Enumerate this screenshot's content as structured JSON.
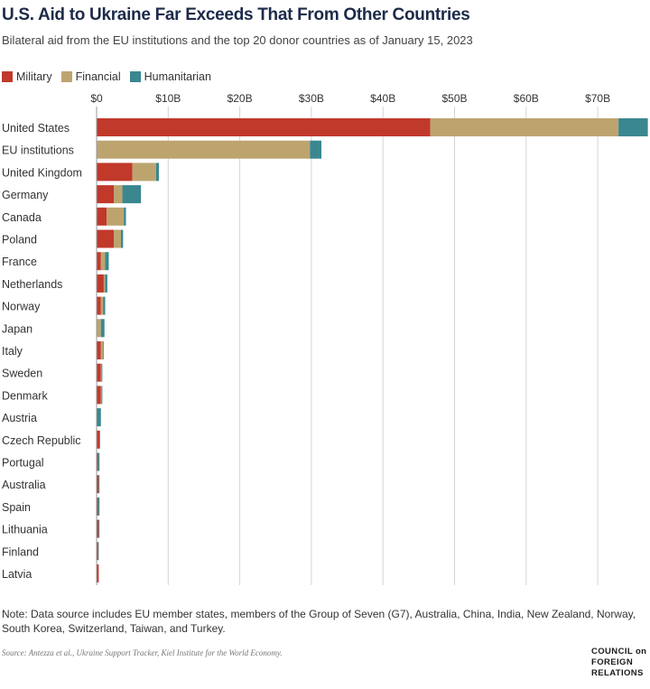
{
  "header": {
    "title": "U.S. Aid to Ukraine Far Exceeds That From Other Countries",
    "subtitle": "Bilateral aid from the EU institutions and the top 20 donor countries as of January 15, 2023"
  },
  "legend": {
    "military": "Military",
    "financial": "Financial",
    "humanitarian": "Humanitarian"
  },
  "colors": {
    "military": "#c0392b",
    "financial": "#bda46f",
    "humanitarian": "#3a8790",
    "grid": "#d4d4d4"
  },
  "chart_data": {
    "type": "bar",
    "orientation": "horizontal",
    "stacked": true,
    "title": "U.S. Aid to Ukraine Far Exceeds That From Other Countries",
    "subtitle": "Bilateral aid from the EU institutions and the top 20 donor countries as of January 15, 2023",
    "x_ticks": [
      "$0",
      "$10B",
      "$20B",
      "$30B",
      "$40B",
      "$50B",
      "$60B",
      "$70B"
    ],
    "xlim": [
      0,
      77
    ],
    "grid": true,
    "legend_position": "top-left",
    "categories": [
      "United States",
      "EU institutions",
      "United Kingdom",
      "Germany",
      "Canada",
      "Poland",
      "France",
      "Netherlands",
      "Norway",
      "Japan",
      "Italy",
      "Sweden",
      "Denmark",
      "Austria",
      "Czech Republic",
      "Portugal",
      "Australia",
      "Spain",
      "Lithuania",
      "Finland",
      "Latvia"
    ],
    "series": [
      {
        "name": "Military",
        "values": [
          46.6,
          0,
          5.0,
          2.4,
          1.4,
          2.4,
          0.6,
          1.0,
          0.6,
          0,
          0.6,
          0.6,
          0.6,
          0,
          0.4,
          0.2,
          0.3,
          0.2,
          0.3,
          0.2,
          0.3
        ]
      },
      {
        "name": "Financial",
        "values": [
          26.3,
          29.8,
          3.3,
          1.2,
          2.4,
          1.0,
          0.6,
          0.2,
          0.3,
          0.6,
          0.3,
          0.1,
          0.1,
          0,
          0,
          0,
          0,
          0,
          0,
          0,
          0
        ]
      },
      {
        "name": "Humanitarian",
        "values": [
          4.1,
          1.6,
          0.4,
          2.6,
          0.3,
          0.3,
          0.5,
          0.3,
          0.3,
          0.5,
          0.1,
          0.1,
          0.1,
          0.6,
          0.1,
          0.2,
          0.1,
          0.2,
          0.1,
          0.1,
          0
        ]
      }
    ]
  },
  "footer": {
    "note": "Note: Data source includes EU member states, members of the Group of Seven (G7), Australia, China, India, New Zealand, Norway, South Korea, Switzerland, Taiwan, and Turkey.",
    "source": "Source: Antezza et al., Ukraine Support Tracker, Kiel Institute for the World Economy.",
    "logo_line1": "COUNCIL on",
    "logo_line2": "FOREIGN",
    "logo_line3": "RELATIONS"
  }
}
